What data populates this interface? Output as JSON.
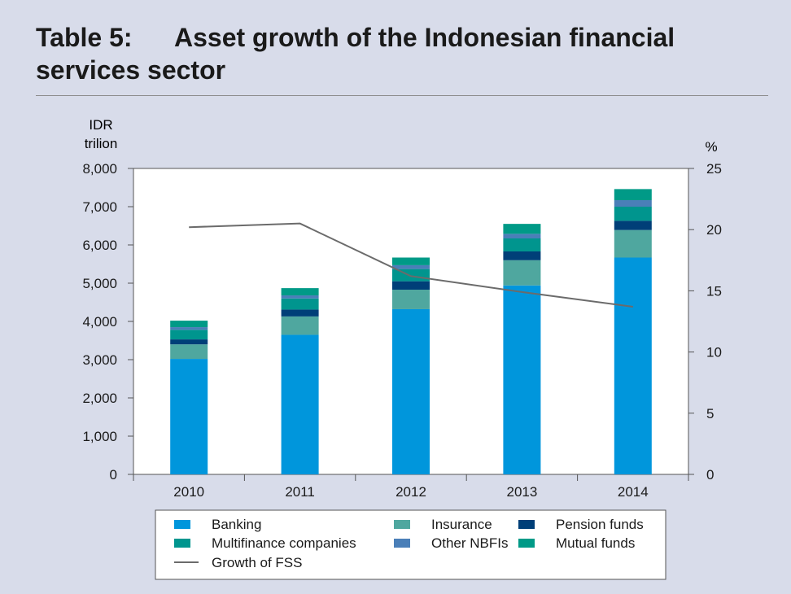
{
  "title": {
    "label": "Table 5:",
    "line1": "Asset growth of the Indonesian financial",
    "line2": "services sector"
  },
  "chart_data": {
    "type": "bar",
    "stacked": true,
    "categories": [
      "2010",
      "2011",
      "2012",
      "2013",
      "2014"
    ],
    "y_left": {
      "label_line1": "IDR",
      "label_line2": "trilion",
      "ticks": [
        "0",
        "1,000",
        "2,000",
        "3,000",
        "4,000",
        "5,000",
        "6,000",
        "7,000",
        "8,000"
      ],
      "ylim": [
        0,
        8000
      ]
    },
    "y_right": {
      "label": "%",
      "ticks": [
        "0",
        "5",
        "10",
        "15",
        "20",
        "25"
      ],
      "ylim": [
        0,
        25
      ]
    },
    "series": [
      {
        "name": "Banking",
        "color": "#0096dc",
        "values": [
          3020,
          3650,
          4320,
          4940,
          5670
        ]
      },
      {
        "name": "Insurance",
        "color": "#4fa79f",
        "values": [
          380,
          480,
          510,
          660,
          720
        ]
      },
      {
        "name": "Pension funds",
        "color": "#003f78",
        "values": [
          130,
          180,
          220,
          230,
          240
        ]
      },
      {
        "name": "Multifinance companies",
        "color": "#00958e",
        "values": [
          250,
          290,
          320,
          340,
          370
        ]
      },
      {
        "name": "Other NBFIs",
        "color": "#4a7fb8",
        "values": [
          70,
          80,
          100,
          120,
          170
        ]
      },
      {
        "name": "Mutual funds",
        "color": "#009a87",
        "values": [
          170,
          190,
          200,
          260,
          290
        ]
      }
    ],
    "line_series": {
      "name": "Growth of FSS",
      "color": "#6b6b6b",
      "axis": "right",
      "values": [
        20.2,
        20.5,
        16.2,
        14.9,
        13.7
      ]
    },
    "legend": {
      "placement": "bottom"
    }
  }
}
